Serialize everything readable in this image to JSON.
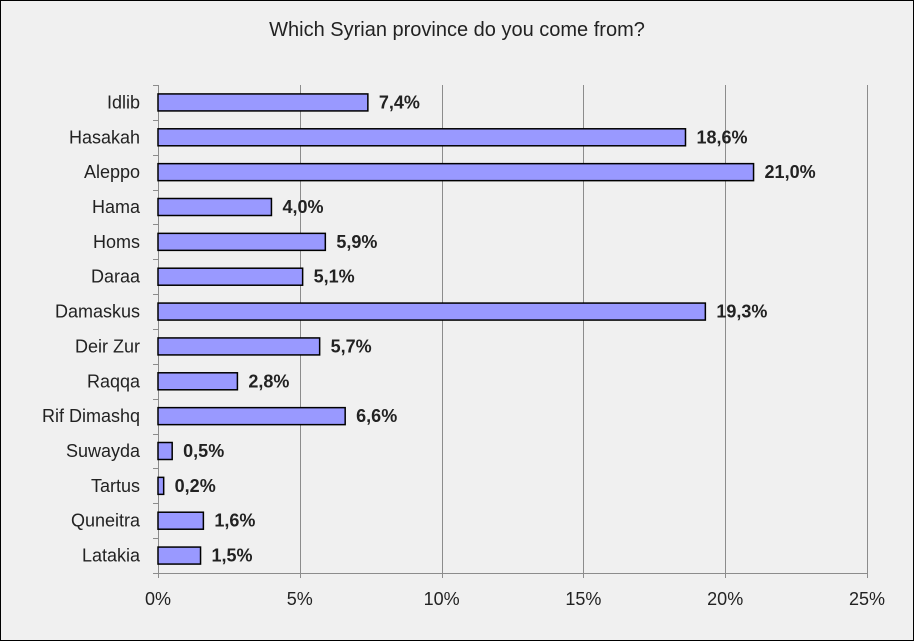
{
  "chart_data": {
    "type": "bar",
    "orientation": "horizontal",
    "title": "Which Syrian province do you come from?",
    "categories": [
      "Idlib",
      "Hasakah",
      "Aleppo",
      "Hama",
      "Homs",
      "Daraa",
      "Damaskus",
      "Deir Zur",
      "Raqqa",
      "Rif Dimashq",
      "Suwayda",
      "Tartus",
      "Quneitra",
      "Latakia"
    ],
    "values": [
      7.4,
      18.6,
      21.0,
      4.0,
      5.9,
      5.1,
      19.3,
      5.7,
      2.8,
      6.6,
      0.5,
      0.2,
      1.6,
      1.5
    ],
    "value_labels": [
      "7,4%",
      "18,6%",
      "21,0%",
      "4,0%",
      "5,9%",
      "5,1%",
      "19,3%",
      "5,7%",
      "2,8%",
      "6,6%",
      "0,5%",
      "0,2%",
      "1,6%",
      "1,5%"
    ],
    "xticks": [
      0,
      5,
      10,
      15,
      20,
      25
    ],
    "xtick_labels": [
      "0%",
      "5%",
      "10%",
      "15%",
      "20%",
      "25%"
    ],
    "xlim": [
      0,
      25
    ],
    "xlabel": "",
    "ylabel": "",
    "grid": "vertical",
    "legend": "none",
    "bar_color": "#9999ff",
    "bar_edge_color": "#000000",
    "plot_background": "#f0f0f0",
    "grid_color": "#8c8c8c"
  }
}
